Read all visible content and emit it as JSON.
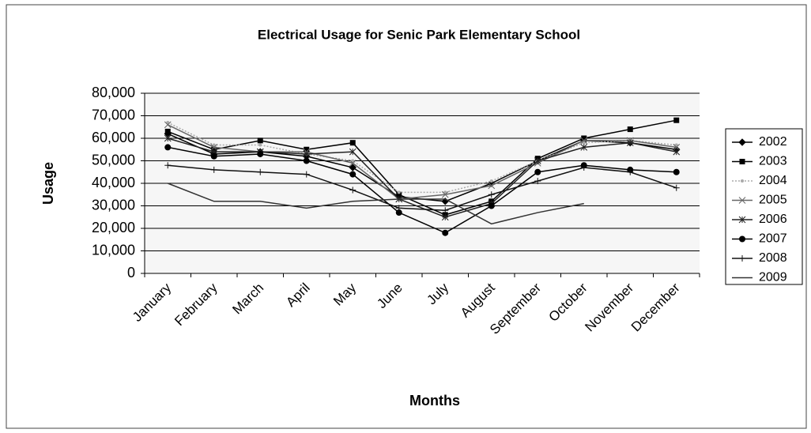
{
  "chart_data": {
    "type": "line",
    "title": "Electrical Usage for Senic Park Elementary School",
    "x_label": "Months",
    "y_label": "Usage",
    "categories": [
      "January",
      "February",
      "March",
      "April",
      "May",
      "June",
      "July",
      "August",
      "September",
      "October",
      "November",
      "December"
    ],
    "ylim": [
      0,
      80000
    ],
    "yticks": [
      0,
      {
        "value": 10000,
        "label": "10,000"
      },
      {
        "value": 20000,
        "label": "20,000"
      },
      {
        "value": 30000,
        "label": "30,000"
      },
      {
        "value": 40000,
        "label": "40,000"
      },
      {
        "value": 50000,
        "label": "50,000"
      },
      {
        "value": 60000,
        "label": "60,000"
      },
      {
        "value": 70000,
        "label": "70,000"
      },
      {
        "value": 80000,
        "label": "80,000"
      }
    ],
    "grid": true,
    "legend": "right",
    "series": [
      {
        "name": "2002",
        "color": "#000000",
        "marker": "diamond",
        "values": [
          62000,
          53000,
          54000,
          52000,
          47000,
          34000,
          32000,
          40000,
          50000,
          59000,
          58000,
          55000
        ]
      },
      {
        "name": "2003",
        "color": "#000000",
        "marker": "square",
        "values": [
          63000,
          55000,
          59000,
          55000,
          58000,
          35000,
          26000,
          32000,
          51000,
          60000,
          64000,
          68000
        ]
      },
      {
        "name": "2004",
        "color": "#aaaaaa",
        "marker": "dot",
        "values": [
          67000,
          57000,
          57000,
          53000,
          50000,
          36000,
          36000,
          41000,
          50000,
          58000,
          59000,
          57000
        ]
      },
      {
        "name": "2005",
        "color": "#666666",
        "marker": "x",
        "values": [
          66000,
          56000,
          54000,
          54000,
          49000,
          33000,
          35000,
          39000,
          49000,
          59000,
          59000,
          56000
        ]
      },
      {
        "name": "2006",
        "color": "#222222",
        "marker": "star",
        "values": [
          60000,
          54000,
          54000,
          53000,
          54000,
          33000,
          25000,
          31000,
          50000,
          56000,
          58000,
          54000
        ]
      },
      {
        "name": "2007",
        "color": "#000000",
        "marker": "circle",
        "values": [
          56000,
          52000,
          53000,
          50000,
          44000,
          27000,
          18000,
          30000,
          45000,
          48000,
          46000,
          45000
        ]
      },
      {
        "name": "2008",
        "color": "#111111",
        "marker": "plus",
        "values": [
          48000,
          46000,
          45000,
          44000,
          37000,
          29000,
          28000,
          35000,
          41000,
          47000,
          45000,
          38000
        ]
      },
      {
        "name": "2009",
        "color": "#333333",
        "marker": "none",
        "values": [
          40000,
          32000,
          32000,
          29000,
          32000,
          33000,
          33000,
          22000,
          27000,
          31000,
          null,
          null
        ]
      }
    ]
  }
}
